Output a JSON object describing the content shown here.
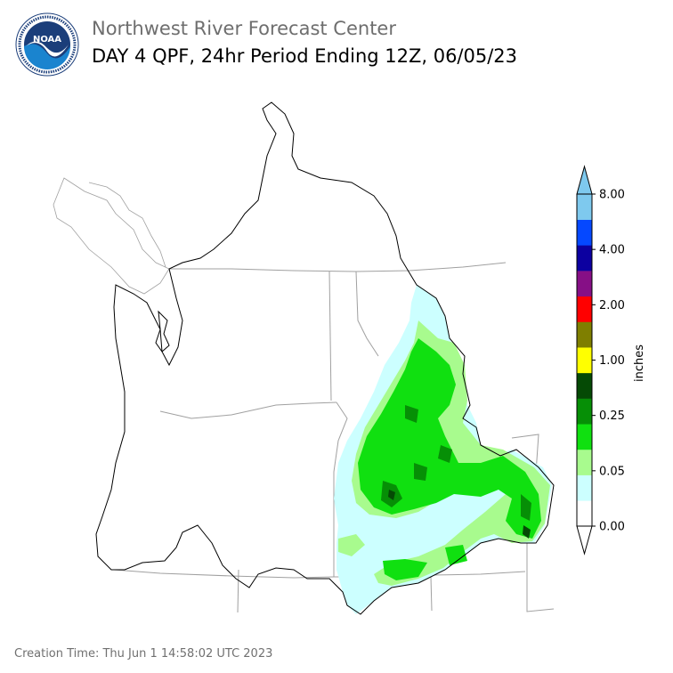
{
  "header": {
    "agency": "Northwest River Forecast Center",
    "product": "DAY 4 QPF, 24hr Period Ending 12Z, 06/05/23"
  },
  "logo": {
    "text": "NOAA",
    "ring_text": "NATIONAL OCEANIC AND ATMOSPHERIC ADMINISTRATION · U.S. DEPARTMENT OF COMMERCE",
    "colors": {
      "ring": "#ffffff",
      "dark": "#1b3e7a",
      "light": "#1a84cf"
    }
  },
  "legend": {
    "unit_label": "inches",
    "tick_labels": [
      "0.00",
      "0.05",
      "0.25",
      "1.00",
      "2.00",
      "4.00",
      "8.00"
    ],
    "bins": [
      {
        "from": 0.0,
        "to": 0.01,
        "color": "#ffffff"
      },
      {
        "from": 0.01,
        "to": 0.05,
        "color": "#ccffff"
      },
      {
        "from": 0.05,
        "to": 0.1,
        "color": "#a8fb8e"
      },
      {
        "from": 0.1,
        "to": 0.25,
        "color": "#10e010"
      },
      {
        "from": 0.25,
        "to": 0.5,
        "color": "#068f06"
      },
      {
        "from": 0.5,
        "to": 1.0,
        "color": "#054a05"
      },
      {
        "from": 1.0,
        "to": 1.5,
        "color": "#ffff00"
      },
      {
        "from": 1.5,
        "to": 2.0,
        "color": "#7f7f00"
      },
      {
        "from": 2.0,
        "to": 2.5,
        "color": "#ff0000"
      },
      {
        "from": 2.5,
        "to": 3.0,
        "color": "#860f86"
      },
      {
        "from": 3.0,
        "to": 4.0,
        "color": "#0c00a0"
      },
      {
        "from": 4.0,
        "to": 6.0,
        "color": "#0548ff"
      },
      {
        "from": 6.0,
        "to": 8.0,
        "color": "#7ec9ee"
      }
    ],
    "extend_under_color": "#ffffff",
    "extend_over_color": "#7ec9ee"
  },
  "map": {
    "qpf_colors": {
      "trace": "#ccffff",
      "light": "#a8fb8e",
      "moderate": "#10e010",
      "heavy": "#068f06",
      "very_heavy": "#054a05"
    },
    "basin_outline_color": "#000000",
    "state_line_color": "#a0a0a0"
  },
  "footer": {
    "creation_time": "Creation Time: Thu Jun 1 14:58:02 UTC 2023"
  }
}
